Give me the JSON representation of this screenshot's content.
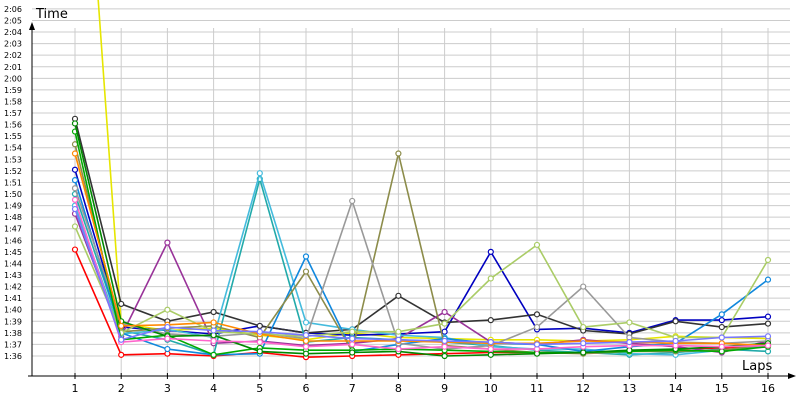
{
  "chart_data": {
    "type": "line",
    "title": "",
    "ylabel": "Time",
    "xlabel": "Laps",
    "x": [
      1,
      2,
      3,
      4,
      5,
      6,
      7,
      8,
      9,
      10,
      11,
      12,
      13,
      14,
      15,
      16
    ],
    "y_ticks": [
      "1:36",
      "1:37",
      "1:38",
      "1:39",
      "1:40",
      "1:41",
      "1:42",
      "1:43",
      "1:44",
      "1:45",
      "1:46",
      "1:47",
      "1:48",
      "1:49",
      "1:50",
      "1:51",
      "1:52",
      "1:53",
      "1:54",
      "1:55",
      "1:56",
      "1:57",
      "1:58",
      "1:59",
      "2:00",
      "2:01",
      "2:02",
      "2:03",
      "2:04",
      "2:05",
      "2:06"
    ],
    "y_unit": "seconds",
    "ylim": [
      94.5,
      127
    ],
    "grid": true,
    "markers": "circle",
    "series": [
      {
        "color": "#e6e600",
        "values": [
          155,
          98.8,
          98.2,
          98.4,
          97.8,
          97.4,
          98.0,
          97.6,
          97.5,
          97.4,
          97.4,
          97.3,
          97.4,
          97.7,
          97.6,
          97.5
        ]
      },
      {
        "color": "#ff0000",
        "values": [
          105.2,
          96.1,
          96.2,
          96.0,
          96.3,
          95.9,
          96.0,
          96.1,
          96.2,
          96.3,
          96.3,
          96.3,
          96.4,
          96.6,
          96.7,
          96.9
        ]
      },
      {
        "color": "#0000c0",
        "values": [
          112.1,
          98.5,
          98.2,
          97.9,
          98.6,
          98.0,
          97.8,
          97.9,
          98.1,
          105.0,
          98.3,
          98.4,
          98.0,
          99.1,
          99.1,
          99.4
        ]
      },
      {
        "color": "#333333",
        "values": [
          116.5,
          100.5,
          99.0,
          99.8,
          98.6,
          98.0,
          98.3,
          101.2,
          98.9,
          99.1,
          99.6,
          98.2,
          97.9,
          99.0,
          98.5,
          98.8
        ]
      },
      {
        "color": "#993399",
        "values": [
          108.3,
          97.7,
          105.8,
          97.1,
          97.3,
          96.9,
          97.1,
          97.5,
          99.8,
          97.2,
          97.0,
          97.4,
          97.1,
          96.8,
          96.3,
          97.3
        ]
      },
      {
        "color": "#22aaaa",
        "values": [
          110.0,
          98.2,
          97.4,
          96.1,
          111.3,
          97.2,
          97.6,
          97.4,
          97.2,
          96.9,
          96.5,
          96.3,
          96.1,
          96.3,
          96.6,
          96.4
        ]
      },
      {
        "color": "#44bbdd",
        "values": [
          109.0,
          97.9,
          98.3,
          97.6,
          111.8,
          98.9,
          98.3,
          97.8,
          97.6,
          96.8,
          96.6,
          96.6,
          96.2,
          96.1,
          96.5,
          96.8
        ]
      },
      {
        "color": "#1188dd",
        "values": [
          111.2,
          98.0,
          96.6,
          96.1,
          96.2,
          104.6,
          96.4,
          97.0,
          97.5,
          97.1,
          97.0,
          96.4,
          96.8,
          97.1,
          99.6,
          102.6
        ]
      },
      {
        "color": "#8c8c4a",
        "values": [
          114.3,
          98.1,
          98.4,
          98.6,
          97.6,
          103.3,
          96.4,
          113.5,
          96.9,
          96.6,
          96.3,
          96.2,
          96.4,
          96.4,
          96.5,
          97.0
        ]
      },
      {
        "color": "#999999",
        "values": [
          110.5,
          98.8,
          97.9,
          97.7,
          98.0,
          97.5,
          109.4,
          97.1,
          96.6,
          96.9,
          98.5,
          102.0,
          97.6,
          97.2,
          97.1,
          97.3
        ]
      },
      {
        "color": "#aacc66",
        "values": [
          107.2,
          98.0,
          100.0,
          98.1,
          97.9,
          97.7,
          98.1,
          98.1,
          98.8,
          102.7,
          105.6,
          98.5,
          98.9,
          97.6,
          97.6,
          104.3
        ]
      },
      {
        "color": "#00aa00",
        "values": [
          115.4,
          97.4,
          97.8,
          96.1,
          96.7,
          96.5,
          96.5,
          96.6,
          96.5,
          96.4,
          96.3,
          96.3,
          96.4,
          96.5,
          96.4,
          96.8
        ]
      },
      {
        "color": "#008800",
        "values": [
          116.1,
          99.0,
          97.7,
          97.8,
          96.4,
          96.2,
          96.3,
          96.4,
          96.0,
          96.1,
          96.2,
          96.3,
          96.5,
          96.6,
          96.8,
          97.1
        ]
      },
      {
        "color": "#ff8800",
        "values": [
          113.5,
          98.6,
          98.7,
          98.9,
          97.9,
          97.3,
          97.3,
          97.3,
          97.2,
          97.1,
          97.1,
          97.3,
          97.2,
          97.1,
          97.1,
          96.9
        ]
      },
      {
        "color": "#ff66cc",
        "values": [
          109.5,
          97.2,
          97.5,
          97.3,
          97.2,
          96.8,
          97.0,
          96.6,
          96.8,
          96.6,
          96.6,
          96.8,
          96.9,
          96.9,
          96.8,
          96.9
        ]
      },
      {
        "color": "#7777ff",
        "values": [
          108.7,
          97.4,
          98.5,
          98.2,
          98.1,
          97.8,
          97.5,
          97.4,
          97.3,
          97.2,
          97.0,
          97.1,
          97.2,
          97.3,
          97.6,
          97.7
        ]
      }
    ]
  }
}
